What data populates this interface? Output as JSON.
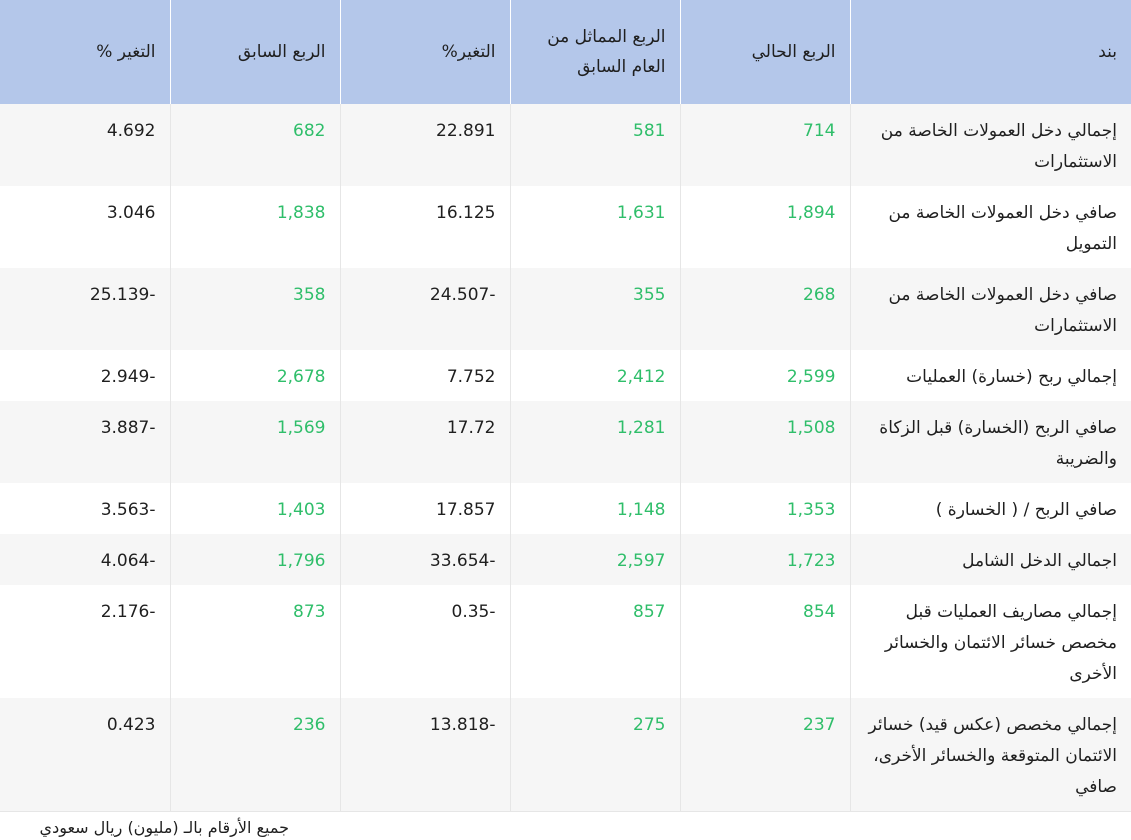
{
  "headers": {
    "item": "بند",
    "current": "الربع الحالي",
    "same_last_year": "الربع المماثل من العام السابق",
    "change1": "التغير%",
    "previous": "الربع السابق",
    "change2": "التغير %"
  },
  "rows": [
    {
      "item": "إجمالي دخل العمولات الخاصة من الاستثمارات",
      "current": "714",
      "same_last_year": "581",
      "change1": "22.891",
      "previous": "682",
      "change2": "4.692"
    },
    {
      "item": "صافي دخل العمولات الخاصة من التمويل",
      "current": "1,894",
      "same_last_year": "1,631",
      "change1": "16.125",
      "previous": "1,838",
      "change2": "3.046"
    },
    {
      "item": "صافي دخل العمولات الخاصة من الاستثمارات",
      "current": "268",
      "same_last_year": "355",
      "change1": "24.507-",
      "previous": "358",
      "change2": "25.139-"
    },
    {
      "item": "إجمالي ربح (خسارة) العمليات",
      "current": "2,599",
      "same_last_year": "2,412",
      "change1": "7.752",
      "previous": "2,678",
      "change2": "2.949-"
    },
    {
      "item": "صافي الربح (الخسارة) قبل الزكاة والضريبة",
      "current": "1,508",
      "same_last_year": "1,281",
      "change1": "17.72",
      "previous": "1,569",
      "change2": "3.887-"
    },
    {
      "item": "صافي الربح / ( الخسارة )",
      "current": "1,353",
      "same_last_year": "1,148",
      "change1": "17.857",
      "previous": "1,403",
      "change2": "3.563-"
    },
    {
      "item": "اجمالي الدخل الشامل",
      "current": "1,723",
      "same_last_year": "2,597",
      "change1": "33.654-",
      "previous": "1,796",
      "change2": "4.064-"
    },
    {
      "item": "إجمالي مصاريف العمليات قبل مخصص خسائر الائتمان والخسائر الأخرى",
      "current": "854",
      "same_last_year": "857",
      "change1": "0.35-",
      "previous": "873",
      "change2": "2.176-"
    },
    {
      "item": "إجمالي مخصص (عكس قيد) خسائر الائتمان المتوقعة والخسائر الأخرى، صافي",
      "current": "237",
      "same_last_year": "275",
      "change1": "13.818-",
      "previous": "236",
      "change2": "0.423"
    }
  ],
  "note": "جميع الأرقام بالـ (مليون) ريال سعودي",
  "colors": {
    "header_bg": "#b4c7ea",
    "value_green": "#2fbe6a",
    "row_stripe": "#f6f6f6"
  }
}
